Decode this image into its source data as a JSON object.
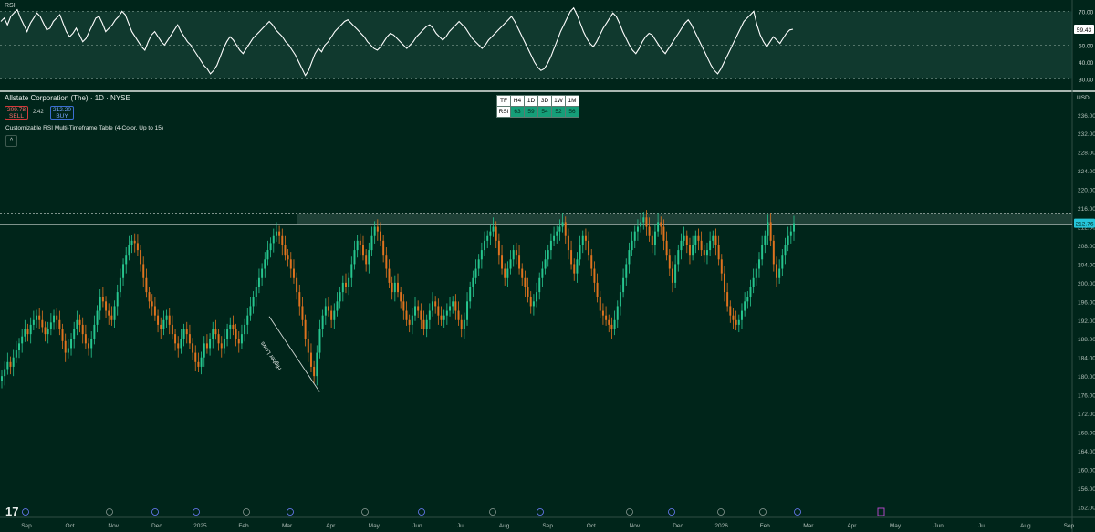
{
  "header": {
    "rsi_tag": "RSI",
    "symbol": "Allstate Corporation (The) · 1D · NYSE",
    "sell_price": "209.78",
    "sell_label": "SELL",
    "spread": "2.42",
    "buy_price": "212.20",
    "buy_label": "BUY",
    "indicator": "Customizable RSI Multi-Timeframe Table (4-Color, Up to 15)",
    "currency": "USD",
    "logo": "17"
  },
  "mtf_table": {
    "headers": [
      "TF",
      "H4",
      "1D",
      "3D",
      "1W",
      "1M"
    ],
    "row_label": "RSI",
    "values": [
      "63",
      "59",
      "54",
      "52",
      "56"
    ]
  },
  "colors": {
    "background": "#00251a",
    "up_candle": "#26c68f",
    "down_candle": "#e0731f",
    "rsi_line": "#ffffff",
    "price_tag": "#26c6da",
    "rsi_band": "#1e4a40"
  },
  "chart_data": [
    {
      "type": "line",
      "name": "RSI",
      "yticks": [
        "70.00",
        "60.00",
        "50.00",
        "40.00",
        "30.00"
      ],
      "ylim": [
        27,
        74
      ],
      "band": [
        30,
        70
      ],
      "last_value": "59.43",
      "values": [
        64,
        66,
        62,
        67,
        69,
        71,
        66,
        62,
        58,
        63,
        66,
        69,
        67,
        63,
        59,
        60,
        64,
        66,
        68,
        63,
        58,
        55,
        57,
        60,
        56,
        52,
        54,
        58,
        62,
        66,
        67,
        63,
        58,
        60,
        62,
        65,
        67,
        70,
        68,
        63,
        58,
        55,
        52,
        49,
        47,
        52,
        56,
        58,
        55,
        52,
        50,
        53,
        56,
        59,
        62,
        58,
        55,
        52,
        50,
        47,
        44,
        41,
        38,
        36,
        33,
        35,
        38,
        43,
        48,
        52,
        55,
        53,
        50,
        47,
        45,
        48,
        51,
        54,
        56,
        58,
        60,
        62,
        64,
        62,
        59,
        57,
        55,
        52,
        50,
        47,
        44,
        40,
        36,
        32,
        35,
        40,
        45,
        48,
        46,
        50,
        52,
        55,
        58,
        60,
        62,
        64,
        65,
        63,
        61,
        59,
        57,
        55,
        52,
        50,
        48,
        47,
        49,
        52,
        55,
        57,
        56,
        54,
        52,
        50,
        48,
        50,
        52,
        55,
        57,
        59,
        61,
        62,
        60,
        57,
        55,
        53,
        55,
        58,
        60,
        62,
        64,
        62,
        60,
        57,
        54,
        52,
        50,
        48,
        50,
        53,
        55,
        57,
        59,
        61,
        63,
        65,
        67,
        64,
        60,
        56,
        52,
        48,
        44,
        40,
        37,
        35,
        36,
        39,
        43,
        48,
        53,
        58,
        62,
        66,
        70,
        72,
        68,
        63,
        58,
        54,
        51,
        49,
        52,
        56,
        60,
        63,
        66,
        69,
        67,
        63,
        58,
        54,
        50,
        47,
        45,
        48,
        52,
        55,
        57,
        56,
        53,
        50,
        47,
        45,
        48,
        51,
        54,
        57,
        60,
        63,
        65,
        62,
        58,
        54,
        50,
        46,
        42,
        38,
        35,
        33,
        36,
        40,
        44,
        48,
        52,
        56,
        60,
        64,
        66,
        68,
        70,
        62,
        56,
        52,
        49,
        52,
        55,
        53,
        51,
        54,
        57,
        59,
        59.43
      ],
      "line_color": "#ffffff"
    },
    {
      "type": "candlestick",
      "name": "Allstate Corporation (The)",
      "yticks": [
        "236.00",
        "232.00",
        "228.00",
        "224.00",
        "220.00",
        "216.00",
        "212.00",
        "208.00",
        "204.00",
        "200.00",
        "196.00",
        "192.00",
        "188.00",
        "184.00",
        "180.00",
        "176.00",
        "172.00",
        "168.00",
        "164.00",
        "160.00",
        "156.00",
        "152.00"
      ],
      "ylim": [
        150.5,
        238.5
      ],
      "xticks": [
        "Sep",
        "Oct",
        "Nov",
        "Dec",
        "2025",
        "Feb",
        "Mar",
        "Apr",
        "May",
        "Jun",
        "Jul",
        "Aug",
        "Sep",
        "Oct",
        "Nov",
        "Dec",
        "2026",
        "Feb",
        "Mar",
        "Apr",
        "May",
        "Jun",
        "Jul",
        "Aug",
        "Sep"
      ],
      "last_price": "212.76",
      "resistance_zone": [
        212.4,
        214.9
      ],
      "trendline": {
        "label": "Higher Lows",
        "from": [
          "Apr",
          176.6
        ],
        "to": [
          "Feb",
          192.8
        ]
      },
      "closes": [
        180,
        181.5,
        183,
        182,
        184,
        185.5,
        187,
        188.5,
        190,
        189,
        191,
        192,
        193,
        192,
        190.5,
        189,
        190,
        191.5,
        193,
        192,
        190,
        187.5,
        185,
        186,
        188,
        190,
        192,
        191,
        189,
        187,
        186,
        188,
        191,
        194,
        197,
        196,
        194,
        193,
        192,
        195,
        198,
        201,
        204,
        206,
        208,
        209,
        208.5,
        207,
        204,
        201,
        198,
        196,
        195,
        193,
        191,
        190,
        192,
        193,
        191,
        189,
        187,
        186,
        188,
        190,
        189,
        187,
        185,
        183,
        182,
        184,
        187,
        186,
        188,
        190,
        189,
        187,
        186,
        188,
        190,
        191,
        190,
        188,
        187,
        189,
        191,
        193,
        195,
        197,
        199,
        201,
        203,
        205,
        207,
        208.5,
        210,
        211,
        210,
        208,
        206,
        205,
        203,
        201,
        198,
        195,
        192,
        188,
        185,
        182,
        180,
        185,
        190,
        193,
        195,
        194,
        192,
        194,
        196,
        198,
        200,
        199,
        201,
        204,
        207,
        209,
        208,
        206,
        204,
        207,
        210,
        212,
        211,
        209,
        206,
        203,
        200,
        198,
        200,
        198,
        196,
        194,
        192,
        191,
        193,
        195,
        194,
        192,
        190,
        192,
        194,
        196,
        195,
        193,
        192,
        193,
        194,
        195,
        196,
        194,
        192,
        190,
        192,
        196,
        199,
        201,
        203,
        205,
        207,
        209,
        210,
        211,
        212,
        209,
        206,
        203,
        201,
        203,
        205,
        207,
        206,
        203,
        201,
        199,
        197,
        195,
        196,
        198,
        201,
        203,
        205,
        207,
        209,
        210,
        211,
        212,
        213,
        210,
        207,
        204,
        202,
        205,
        208,
        210,
        209,
        206,
        203,
        200,
        197,
        194,
        193,
        192,
        191,
        190,
        192,
        195,
        198,
        201,
        204,
        207,
        209,
        211,
        212,
        213,
        214,
        212,
        210,
        208,
        211,
        213,
        212,
        209,
        206,
        203,
        200,
        204,
        207,
        209,
        210,
        208,
        206,
        208,
        210,
        209,
        207,
        206,
        207,
        209,
        210,
        208,
        205,
        202,
        198,
        195,
        193,
        192,
        191,
        192,
        194,
        196,
        197,
        199,
        201,
        203,
        205,
        208,
        210,
        213,
        209,
        204,
        201,
        203,
        206,
        208,
        210,
        211,
        212.76
      ]
    }
  ]
}
